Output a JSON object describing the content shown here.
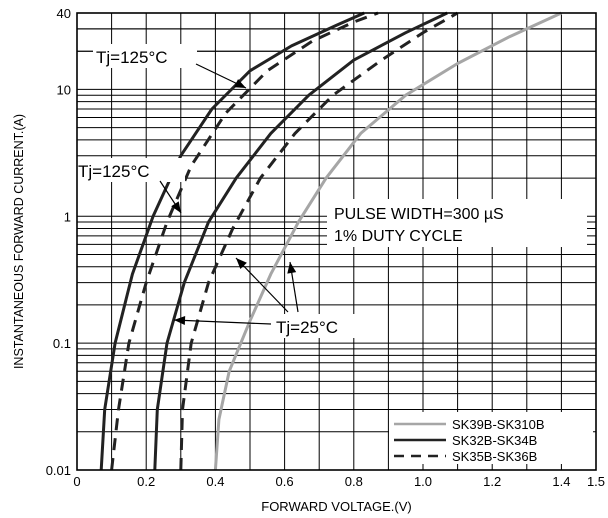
{
  "chart_data": {
    "type": "line",
    "xlabel": "FORWARD VOLTAGE.(V)",
    "ylabel": "INSTANTANEOUS FORWARD CURRENT.(A)",
    "xlim": [
      0,
      1.5
    ],
    "ylim": [
      0.01,
      40
    ],
    "y_scale": "log",
    "grid": true,
    "legend_position": "bottom-right",
    "x_ticks": [
      "0",
      "0.2",
      "0.4",
      "0.6",
      "0.8",
      "1.0",
      "1.2",
      "1.4",
      "1.5"
    ],
    "y_ticks": [
      "0.01",
      "0.1",
      "1",
      "10",
      "40"
    ],
    "annotations": [
      "Tj=125°C",
      "Tj=125°C",
      "Tj=25°C",
      "PULSE WIDTH=300 µS",
      "1% DUTY CYCLE"
    ],
    "series": [
      {
        "name": "SK39B-SK310B",
        "color": "#a6a6a6",
        "dash": "solid",
        "points": [
          {
            "x": 0.4,
            "y": 0.01
          },
          {
            "x": 0.41,
            "y": 0.025
          },
          {
            "x": 0.44,
            "y": 0.06
          },
          {
            "x": 0.5,
            "y": 0.15
          },
          {
            "x": 0.56,
            "y": 0.35
          },
          {
            "x": 0.64,
            "y": 0.9
          },
          {
            "x": 0.72,
            "y": 2.0
          },
          {
            "x": 0.82,
            "y": 4.5
          },
          {
            "x": 0.95,
            "y": 9.0
          },
          {
            "x": 1.1,
            "y": 16
          },
          {
            "x": 1.25,
            "y": 26
          },
          {
            "x": 1.4,
            "y": 40
          }
        ]
      },
      {
        "name": "SK32B-SK34B",
        "color": "#222222",
        "dash": "solid",
        "points": [
          {
            "x": 0.07,
            "y": 0.01
          },
          {
            "x": 0.08,
            "y": 0.03
          },
          {
            "x": 0.11,
            "y": 0.1
          },
          {
            "x": 0.16,
            "y": 0.35
          },
          {
            "x": 0.22,
            "y": 1.0
          },
          {
            "x": 0.3,
            "y": 3.0
          },
          {
            "x": 0.39,
            "y": 7.0
          },
          {
            "x": 0.5,
            "y": 14
          },
          {
            "x": 0.62,
            "y": 22
          },
          {
            "x": 0.75,
            "y": 32
          },
          {
            "x": 0.83,
            "y": 40
          }
        ]
      },
      {
        "name": "SK32B-SK34B",
        "color": "#222222",
        "dash": "solid",
        "points": [
          {
            "x": 0.225,
            "y": 0.01
          },
          {
            "x": 0.232,
            "y": 0.03
          },
          {
            "x": 0.26,
            "y": 0.1
          },
          {
            "x": 0.31,
            "y": 0.3
          },
          {
            "x": 0.38,
            "y": 0.9
          },
          {
            "x": 0.46,
            "y": 2.0
          },
          {
            "x": 0.56,
            "y": 4.5
          },
          {
            "x": 0.67,
            "y": 9.0
          },
          {
            "x": 0.8,
            "y": 17
          },
          {
            "x": 0.95,
            "y": 28
          },
          {
            "x": 1.07,
            "y": 40
          }
        ]
      },
      {
        "name": "SK35B-SK36B",
        "color": "#222222",
        "dash": "dashed",
        "points": [
          {
            "x": 0.1,
            "y": 0.01
          },
          {
            "x": 0.12,
            "y": 0.03
          },
          {
            "x": 0.15,
            "y": 0.1
          },
          {
            "x": 0.2,
            "y": 0.3
          },
          {
            "x": 0.26,
            "y": 0.9
          },
          {
            "x": 0.33,
            "y": 2.5
          },
          {
            "x": 0.43,
            "y": 6.5
          },
          {
            "x": 0.55,
            "y": 14
          },
          {
            "x": 0.68,
            "y": 24
          },
          {
            "x": 0.8,
            "y": 34
          },
          {
            "x": 0.87,
            "y": 40
          }
        ]
      },
      {
        "name": "SK35B-SK36B",
        "color": "#222222",
        "dash": "dashed",
        "points": [
          {
            "x": 0.3,
            "y": 0.01
          },
          {
            "x": 0.305,
            "y": 0.03
          },
          {
            "x": 0.33,
            "y": 0.1
          },
          {
            "x": 0.38,
            "y": 0.3
          },
          {
            "x": 0.45,
            "y": 0.8
          },
          {
            "x": 0.53,
            "y": 2.0
          },
          {
            "x": 0.63,
            "y": 4.5
          },
          {
            "x": 0.74,
            "y": 9.0
          },
          {
            "x": 0.88,
            "y": 17
          },
          {
            "x": 1.0,
            "y": 28
          },
          {
            "x": 1.1,
            "y": 40
          }
        ]
      }
    ],
    "legend": [
      {
        "label": "SK39B-SK310B",
        "color": "#a6a6a6",
        "dash": "solid"
      },
      {
        "label": "SK32B-SK34B",
        "color": "#222222",
        "dash": "solid"
      },
      {
        "label": "SK35B-SK36B",
        "color": "#222222",
        "dash": "dashed"
      }
    ]
  }
}
